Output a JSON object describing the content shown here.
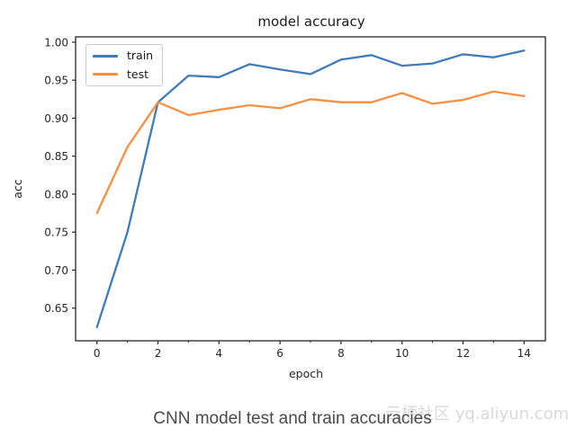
{
  "chart_data": {
    "type": "line",
    "title": "model accuracy",
    "xlabel": "epoch",
    "ylabel": "acc",
    "x": [
      0,
      1,
      2,
      3,
      4,
      5,
      6,
      7,
      8,
      9,
      10,
      11,
      12,
      13,
      14
    ],
    "series": [
      {
        "name": "train",
        "color": "#3f7cb9",
        "values": [
          0.625,
          0.75,
          0.921,
          0.956,
          0.954,
          0.971,
          0.964,
          0.958,
          0.977,
          0.983,
          0.969,
          0.972,
          0.984,
          0.98,
          0.989
        ]
      },
      {
        "name": "test",
        "color": "#f79043",
        "values": [
          0.775,
          0.862,
          0.921,
          0.904,
          0.911,
          0.917,
          0.913,
          0.925,
          0.921,
          0.921,
          0.933,
          0.919,
          0.924,
          0.935,
          0.929
        ]
      }
    ],
    "xlim": [
      -0.7,
      14.7
    ],
    "ylim": [
      0.607,
      1.007
    ],
    "xticks": [
      0,
      2,
      4,
      6,
      8,
      10,
      12,
      14
    ],
    "xticks_minor": [
      1,
      3,
      5,
      7,
      9,
      11,
      13
    ],
    "yticks": [
      0.65,
      0.7,
      0.75,
      0.8,
      0.85,
      0.9,
      0.95,
      1.0
    ],
    "grid": false,
    "legend_position": "upper left",
    "spine_color": "#262626"
  },
  "legend": {
    "entries": [
      "train",
      "test"
    ]
  },
  "caption": {
    "text": "CNN model test and train accuracies"
  },
  "watermark": {
    "text": "云栖社区 yq.aliyun.com"
  }
}
